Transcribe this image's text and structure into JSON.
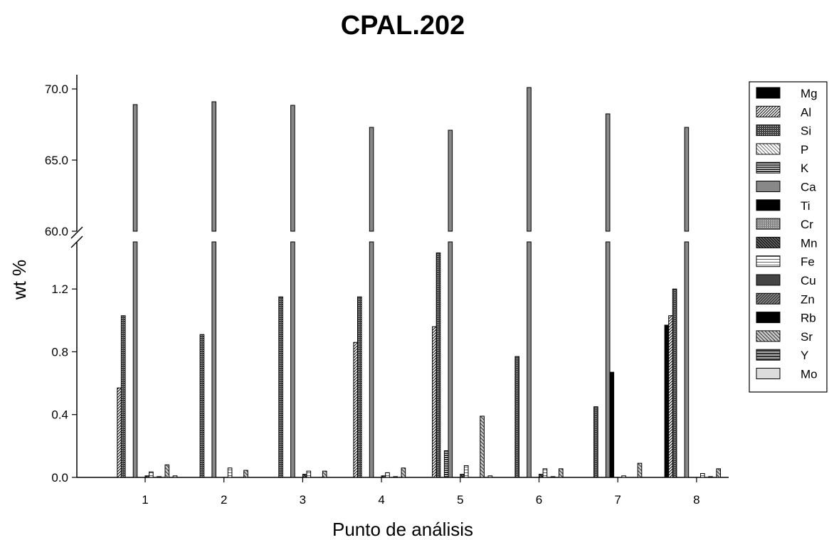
{
  "chart_data": {
    "type": "bar",
    "title": "CPAL.202",
    "xlabel": "Punto de análisis",
    "ylabel": "wt %",
    "categories": [
      "1",
      "2",
      "3",
      "4",
      "5",
      "6",
      "7",
      "8"
    ],
    "y_axis": {
      "broken": true,
      "lower_range": [
        0,
        1.5
      ],
      "lower_ticks": [
        "0.0",
        "0.4",
        "0.8",
        "1.2"
      ],
      "upper_range": [
        60,
        71
      ],
      "upper_ticks": [
        "60.0",
        "65.0",
        "70.0"
      ]
    },
    "legend_position": "right",
    "grid": false,
    "series": [
      {
        "name": "Mg",
        "pattern": "solid-black",
        "values": [
          0,
          0,
          0,
          0,
          0,
          0,
          0,
          0.97
        ]
      },
      {
        "name": "Al",
        "pattern": "hatch-fine",
        "values": [
          0.57,
          0,
          0,
          0.86,
          0.96,
          0,
          0,
          1.03
        ]
      },
      {
        "name": "Si",
        "pattern": "dots-dark",
        "values": [
          1.03,
          0.91,
          1.15,
          1.15,
          1.43,
          0.77,
          0.45,
          1.2
        ]
      },
      {
        "name": "P",
        "pattern": "hatch-light",
        "values": [
          0,
          0,
          0,
          0,
          0,
          0,
          0,
          0
        ]
      },
      {
        "name": "K",
        "pattern": "horizontal-dark",
        "values": [
          0,
          0,
          0,
          0,
          0.17,
          0,
          0,
          0
        ]
      },
      {
        "name": "Ca",
        "pattern": "solid-gray",
        "values": [
          68.9,
          69.1,
          68.85,
          67.3,
          67.1,
          70.1,
          68.25,
          67.3
        ]
      },
      {
        "name": "Ti",
        "pattern": "solid-black",
        "values": [
          0,
          0,
          0,
          0,
          0,
          0,
          0.67,
          0
        ]
      },
      {
        "name": "Cr",
        "pattern": "dots-light",
        "values": [
          0,
          0,
          0,
          0,
          0,
          0,
          0,
          0
        ]
      },
      {
        "name": "Mn",
        "pattern": "hatch-back-dark",
        "values": [
          0.01,
          0,
          0.02,
          0.01,
          0.02,
          0.02,
          0,
          0
        ]
      },
      {
        "name": "Fe",
        "pattern": "horizontal-light",
        "values": [
          0.035,
          0.06,
          0.04,
          0.03,
          0.075,
          0.055,
          0.01,
          0.025
        ]
      },
      {
        "name": "Cu",
        "pattern": "solid-darkgray",
        "values": [
          0,
          0,
          0,
          0,
          0,
          0,
          0,
          0
        ]
      },
      {
        "name": "Zn",
        "pattern": "hatch-medium",
        "values": [
          0.005,
          0,
          0,
          0.005,
          0,
          0.005,
          0,
          0.005
        ]
      },
      {
        "name": "Rb",
        "pattern": "solid-black",
        "values": [
          0,
          0,
          0,
          0,
          0,
          0,
          0,
          0
        ]
      },
      {
        "name": "Sr",
        "pattern": "hatch-gray",
        "values": [
          0.08,
          0.045,
          0.04,
          0.06,
          0.39,
          0.055,
          0.09,
          0.055
        ]
      },
      {
        "name": "Y",
        "pattern": "horizontal-medium",
        "values": [
          0,
          0,
          0,
          0,
          0,
          0,
          0,
          0
        ]
      },
      {
        "name": "Mo",
        "pattern": "solid-lightgray",
        "values": [
          0.01,
          0,
          0,
          0,
          0.01,
          0,
          0,
          0
        ]
      }
    ]
  }
}
